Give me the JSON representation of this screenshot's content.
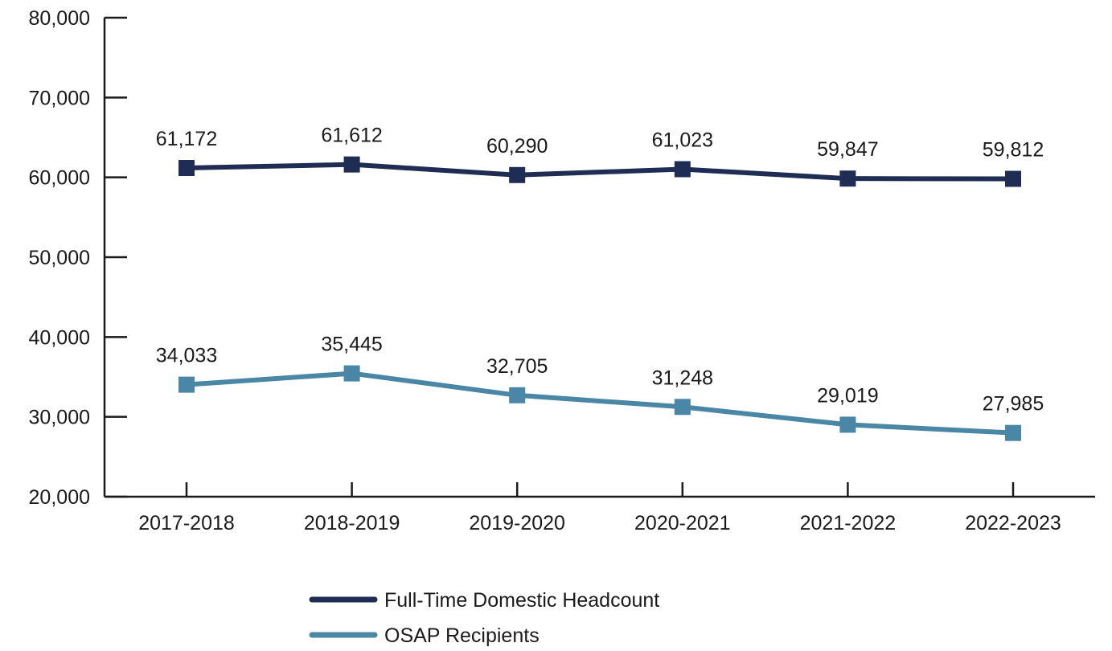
{
  "chart_data": {
    "type": "line",
    "title": "",
    "xlabel": "",
    "ylabel": "",
    "categories": [
      "2017-2018",
      "2018-2019",
      "2019-2020",
      "2020-2021",
      "2021-2022",
      "2022-2023"
    ],
    "ylim": [
      20000,
      80000
    ],
    "yticks": [
      20000,
      30000,
      40000,
      50000,
      60000,
      70000,
      80000
    ],
    "ytick_labels": [
      "20,000",
      "30,000",
      "40,000",
      "50,000",
      "60,000",
      "70,000",
      "80,000"
    ],
    "grid": false,
    "legend_position": "bottom-center",
    "series": [
      {
        "name": "Full-Time Domestic Headcount",
        "color": "#1f2d54",
        "marker": "square",
        "values": [
          61172,
          61612,
          60290,
          61023,
          59847,
          59812
        ],
        "labels": [
          "61,172",
          "61,612",
          "60,290",
          "61,023",
          "59,847",
          "59,812"
        ]
      },
      {
        "name": "OSAP Recipients",
        "color": "#4a86a6",
        "marker": "square",
        "values": [
          34033,
          35445,
          32705,
          31248,
          29019,
          27985
        ],
        "labels": [
          "34,033",
          "35,445",
          "32,705",
          "31,248",
          "29,019",
          "27,985"
        ]
      }
    ]
  }
}
